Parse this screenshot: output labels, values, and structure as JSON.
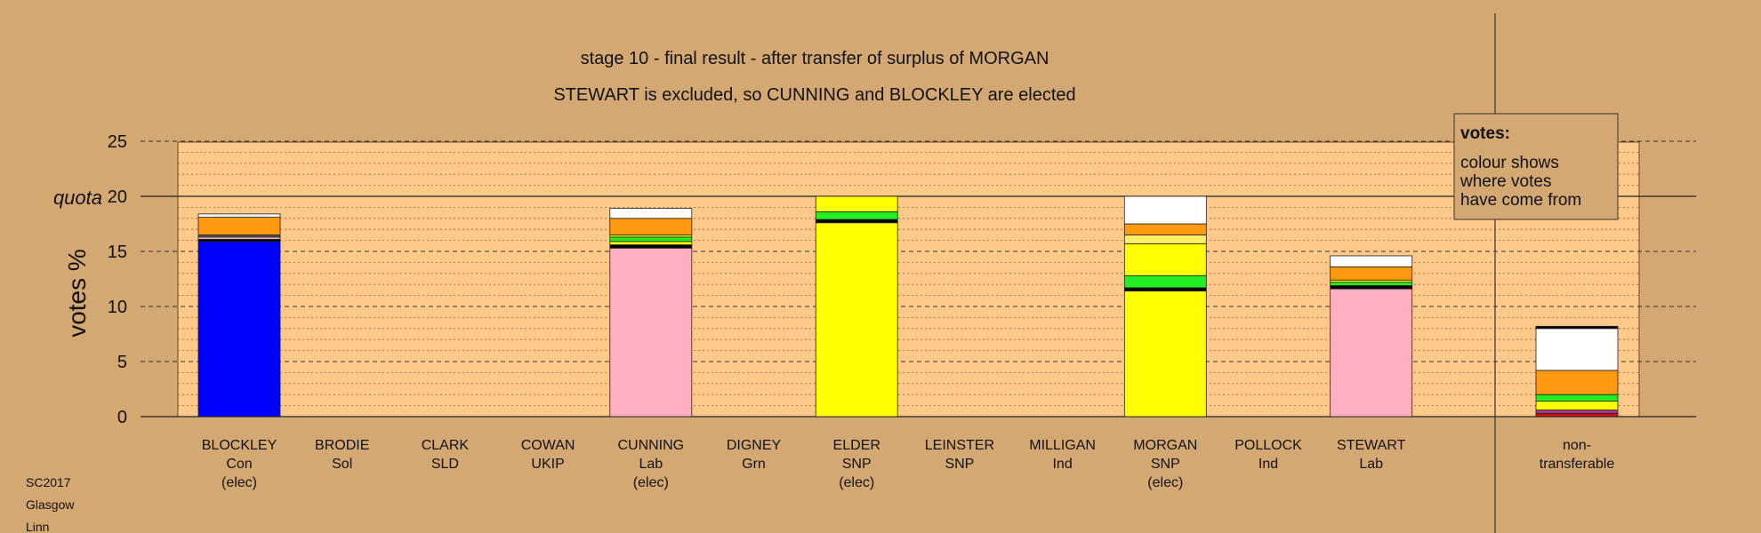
{
  "title_lines": [
    "stage 10 - final result - after transfer of surplus of MORGAN",
    "STEWART is excluded, so CUNNING and BLOCKLEY are elected"
  ],
  "corner_lines": [
    "SC2017",
    "Glasgow",
    "Linn"
  ],
  "legend": {
    "heading": "votes:",
    "lines": [
      "colour shows",
      "where votes",
      "have come from"
    ]
  },
  "chart_data": {
    "type": "bar",
    "stacked": true,
    "ylabel": "votes %",
    "ylim": [
      0,
      25
    ],
    "yticks": [
      0,
      5,
      10,
      15,
      20,
      25
    ],
    "quota": 20,
    "quota_label": "quota",
    "categories": [
      {
        "name": "BLOCKLEY",
        "party": "Con",
        "status": "(elec)",
        "segments": [
          {
            "value": 15.9,
            "color": "#0000ff"
          },
          {
            "value": 0.2,
            "color": "#000000"
          },
          {
            "value": 0.2,
            "color": "#ffb6c1"
          },
          {
            "value": 0.2,
            "color": "#5a5a5a"
          },
          {
            "value": 1.6,
            "color": "#ff9a10"
          },
          {
            "value": 0.3,
            "color": "#ffffff"
          }
        ]
      },
      {
        "name": "BRODIE",
        "party": "Sol",
        "status": "",
        "segments": []
      },
      {
        "name": "CLARK",
        "party": "SLD",
        "status": "",
        "segments": []
      },
      {
        "name": "COWAN",
        "party": "UKIP",
        "status": "",
        "segments": []
      },
      {
        "name": "CUNNING",
        "party": "Lab",
        "status": "(elec)",
        "segments": [
          {
            "value": 15.3,
            "color": "#ffb0c0"
          },
          {
            "value": 0.3,
            "color": "#000000"
          },
          {
            "value": 0.3,
            "color": "#ffff00"
          },
          {
            "value": 0.4,
            "color": "#22ee22"
          },
          {
            "value": 0.2,
            "color": "#ffff00"
          },
          {
            "value": 1.5,
            "color": "#ff9a10"
          },
          {
            "value": 0.9,
            "color": "#ffffff"
          }
        ]
      },
      {
        "name": "DIGNEY",
        "party": "Grn",
        "status": "",
        "segments": []
      },
      {
        "name": "ELDER",
        "party": "SNP",
        "status": "(elec)",
        "segments": [
          {
            "value": 17.6,
            "color": "#ffff00"
          },
          {
            "value": 0.3,
            "color": "#000000"
          },
          {
            "value": 0.7,
            "color": "#22ee22"
          },
          {
            "value": 1.4,
            "color": "#ffff00"
          }
        ]
      },
      {
        "name": "LEINSTER",
        "party": "SNP",
        "status": "",
        "segments": []
      },
      {
        "name": "MILLIGAN",
        "party": "Ind",
        "status": "",
        "segments": []
      },
      {
        "name": "MORGAN",
        "party": "SNP",
        "status": "(elec)",
        "segments": [
          {
            "value": 11.4,
            "color": "#ffff00"
          },
          {
            "value": 0.3,
            "color": "#000000"
          },
          {
            "value": 1.1,
            "color": "#22ee22"
          },
          {
            "value": 2.9,
            "color": "#ffff00"
          },
          {
            "value": 0.8,
            "color": "#ffee66"
          },
          {
            "value": 1.0,
            "color": "#ff9a10"
          },
          {
            "value": 2.5,
            "color": "#ffffff"
          }
        ]
      },
      {
        "name": "POLLOCK",
        "party": "Ind",
        "status": "",
        "segments": []
      },
      {
        "name": "STEWART",
        "party": "Lab",
        "status": "",
        "segments": [
          {
            "value": 11.6,
            "color": "#ffb0c0"
          },
          {
            "value": 0.3,
            "color": "#000000"
          },
          {
            "value": 0.3,
            "color": "#22ee22"
          },
          {
            "value": 0.2,
            "color": "#ffff00"
          },
          {
            "value": 1.2,
            "color": "#ff9a10"
          },
          {
            "value": 1.0,
            "color": "#ffffff"
          }
        ]
      }
    ],
    "nontransferable": {
      "label_lines": [
        "non-",
        "transferable"
      ],
      "segments": [
        {
          "value": 0.3,
          "color": "#cc1111"
        },
        {
          "value": 0.3,
          "color": "#aa3399"
        },
        {
          "value": 0.8,
          "color": "#ffff00"
        },
        {
          "value": 0.6,
          "color": "#22ee22"
        },
        {
          "value": 2.2,
          "color": "#ff9a10"
        },
        {
          "value": 3.8,
          "color": "#ffffff"
        },
        {
          "value": 0.2,
          "color": "#000000"
        }
      ]
    }
  }
}
